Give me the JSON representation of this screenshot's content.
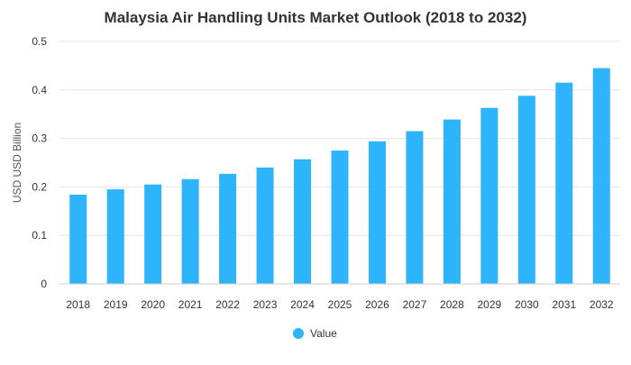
{
  "chart_data": {
    "type": "bar",
    "title": "Malaysia Air Handling Units Market Outlook (2018 to 2032)",
    "xlabel": "",
    "ylabel": "USD USD Billion",
    "ylim": [
      0,
      0.5
    ],
    "yticks": [
      "0",
      "0.1",
      "0.2",
      "0.3",
      "0.4",
      "0.5"
    ],
    "ytick_values": [
      0,
      0.1,
      0.2,
      0.3,
      0.4,
      0.5
    ],
    "grid": true,
    "legend_position": "bottom",
    "categories": [
      "2018",
      "2019",
      "2020",
      "2021",
      "2022",
      "2023",
      "2024",
      "2025",
      "2026",
      "2027",
      "2028",
      "2029",
      "2030",
      "2031",
      "2032"
    ],
    "series": [
      {
        "name": "Value",
        "color": "#2db4fb",
        "values": [
          0.184,
          0.195,
          0.205,
          0.216,
          0.227,
          0.24,
          0.257,
          0.275,
          0.294,
          0.315,
          0.339,
          0.363,
          0.388,
          0.415,
          0.445
        ]
      }
    ]
  }
}
